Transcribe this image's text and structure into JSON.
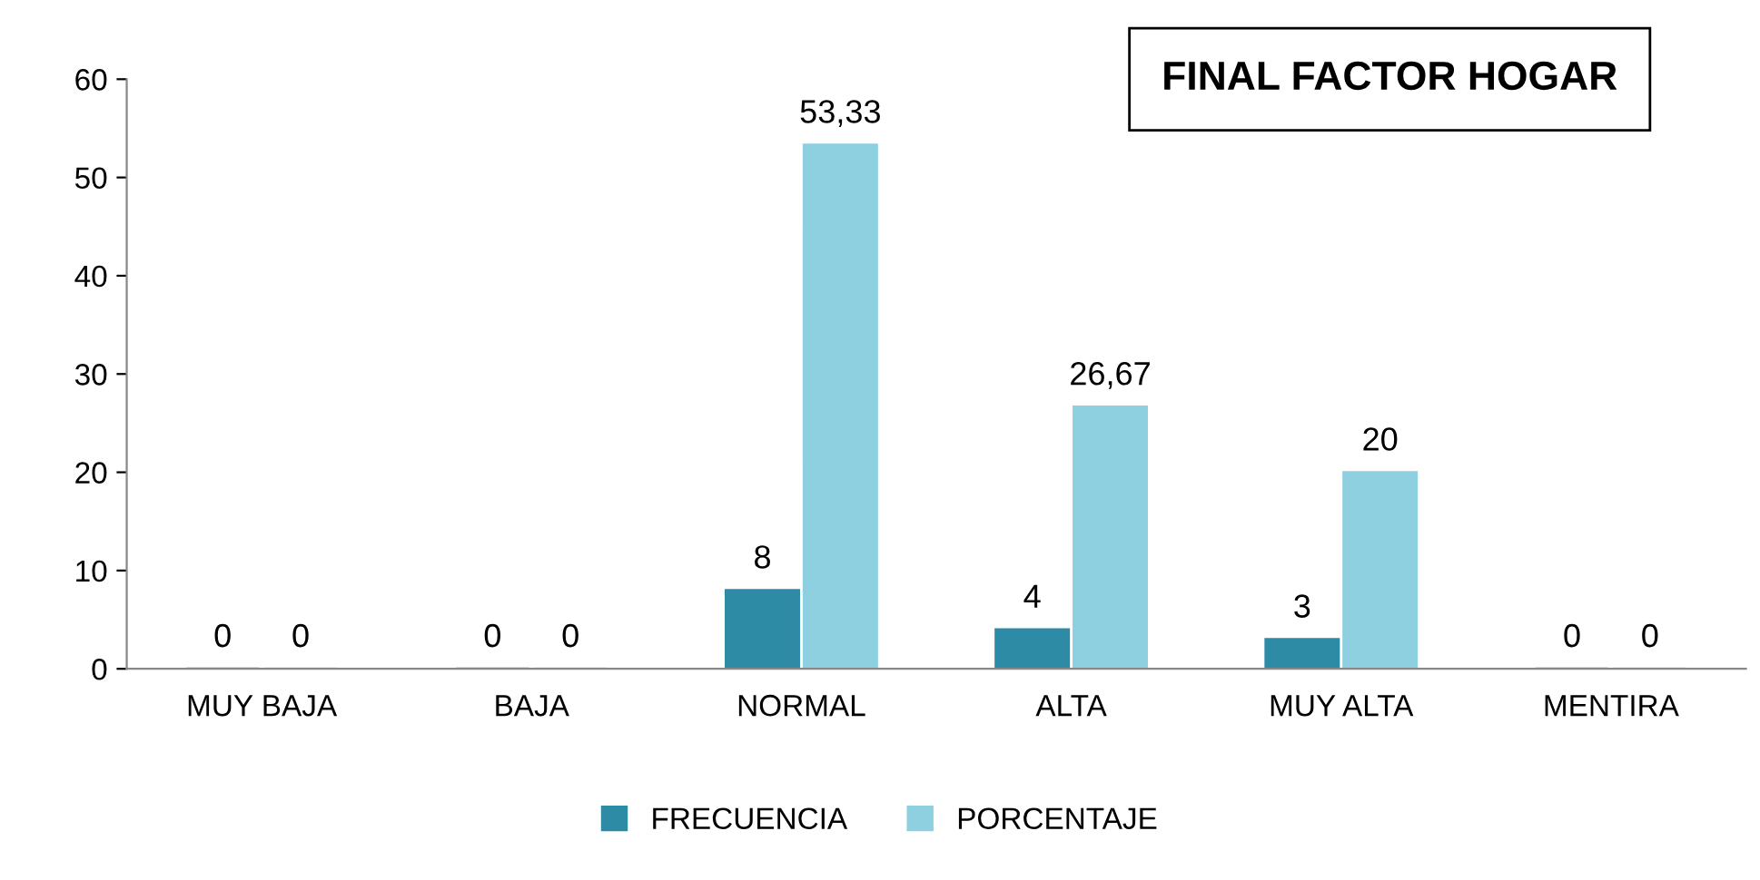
{
  "chart_data": {
    "type": "bar",
    "title": "FINAL FACTOR HOGAR",
    "categories": [
      "MUY BAJA",
      "BAJA",
      "NORMAL",
      "ALTA",
      "MUY ALTA",
      "MENTIRA"
    ],
    "series": [
      {
        "name": "FRECUENCIA",
        "color": "#2e8ba6",
        "values": [
          0,
          0,
          8,
          4,
          3,
          0
        ],
        "value_labels": [
          "0",
          "0",
          "8",
          "4",
          "3",
          "0"
        ]
      },
      {
        "name": "PORCENTAJE",
        "color": "#8ecfe0",
        "values": [
          0,
          0,
          53.33,
          26.67,
          20,
          0
        ],
        "value_labels": [
          "0",
          "0",
          "53,33",
          "26,67",
          "20",
          "0"
        ]
      }
    ],
    "ylim": [
      0,
      60
    ],
    "yticks": [
      0,
      10,
      20,
      30,
      40,
      50,
      60
    ],
    "grid": false,
    "legend": "bottom"
  }
}
